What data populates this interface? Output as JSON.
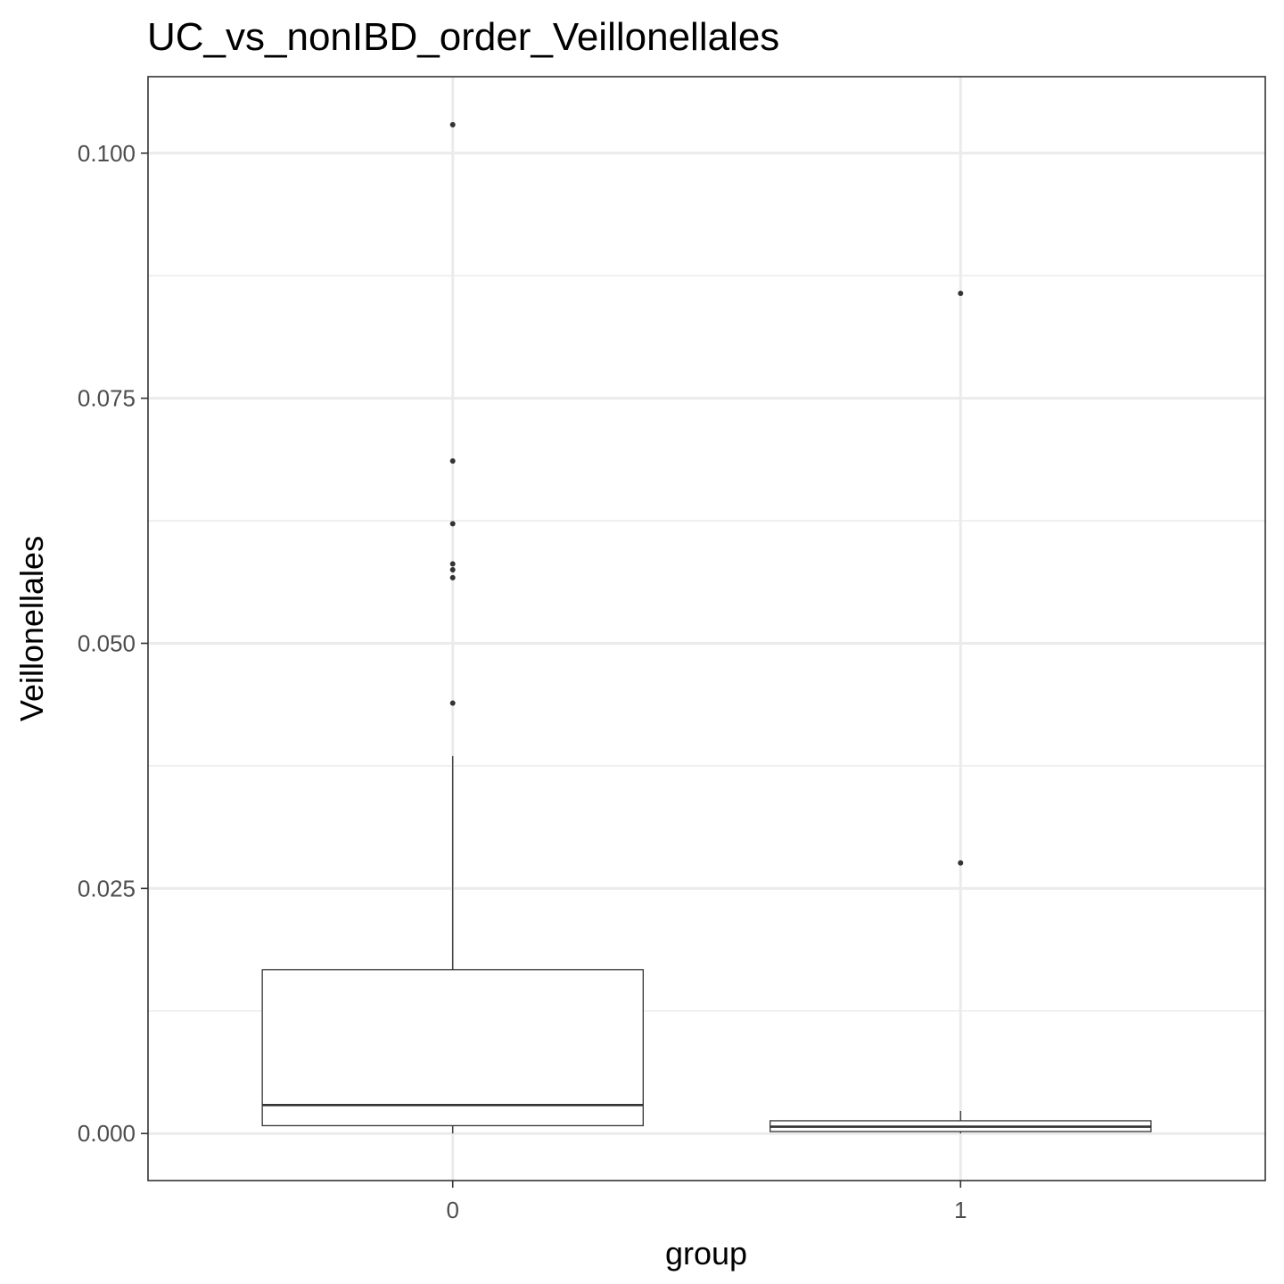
{
  "chart_data": {
    "type": "boxplot",
    "title": "UC_vs_nonIBD_order_Veillonellales",
    "xlabel": "group",
    "ylabel": "Veillonellales",
    "categories": [
      "0",
      "1"
    ],
    "ylim": [
      -0.0048,
      0.1078
    ],
    "y_ticks": [
      0.0,
      0.025,
      0.05,
      0.075,
      0.1
    ],
    "y_tick_labels": [
      "0.000",
      "0.025",
      "0.050",
      "0.075",
      "0.100"
    ],
    "grid": true,
    "legend": "none",
    "boxes": [
      {
        "group": "0",
        "whisker_low": 0.0,
        "q1": 0.0008,
        "median": 0.0029,
        "q3": 0.0167,
        "whisker_high": 0.0385,
        "outliers": [
          0.1029,
          0.0686,
          0.0622,
          0.0581,
          0.0575,
          0.0567,
          0.0439
        ]
      },
      {
        "group": "1",
        "whisker_low": 0.0,
        "q1": 0.0002,
        "median": 0.0007,
        "q3": 0.0013,
        "whisker_high": 0.0023,
        "outliers": [
          0.0857,
          0.0276
        ]
      }
    ],
    "colors": {
      "background": "#ffffff",
      "grid": "#ebebeb",
      "border": "#333333",
      "box_fill": "#ffffff",
      "box_line": "#333333",
      "point": "#333333",
      "tick_text": "#4d4d4d",
      "title_text": "#000000"
    }
  }
}
